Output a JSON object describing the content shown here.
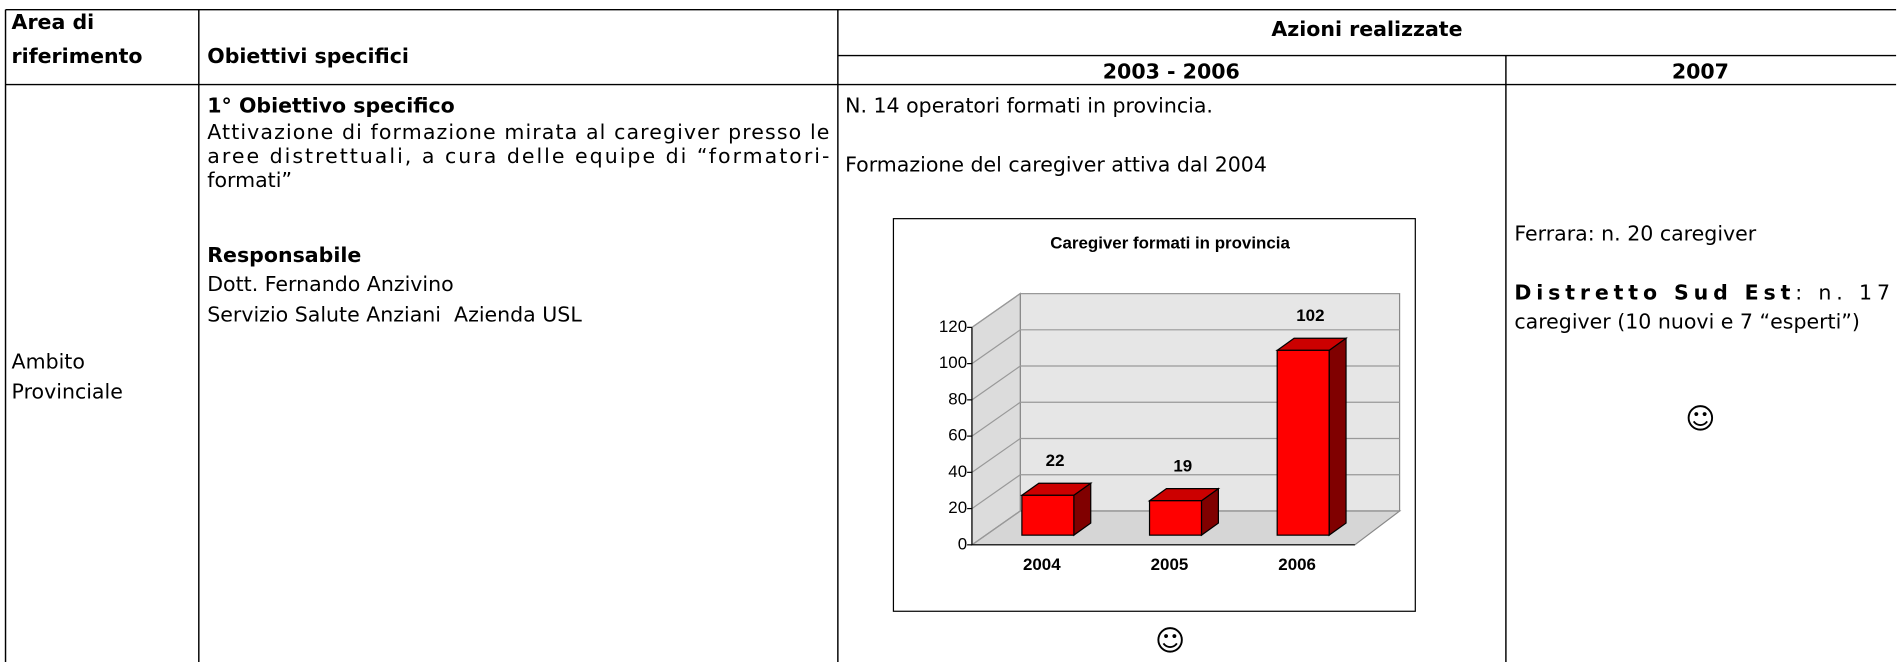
{
  "header": {
    "area": [
      "Area di",
      "riferimento"
    ],
    "objectives": "Obiettivi specifici",
    "actions": "Azioni realizzate",
    "period1": "2003 - 2006",
    "period2": "2007"
  },
  "row": {
    "area": [
      "Ambito",
      "Provinciale"
    ],
    "objective": {
      "heading": "1° Obiettivo specifico",
      "lines": [
        "Attivazione di formazione mirata al caregiver presso le",
        "aree distrettuali, a cura delle equipe di “formatori-",
        "formati”"
      ],
      "responsible_heading": "Responsabile",
      "responsible": [
        "Dott. Fernando Anzivino",
        "Servizio Salute Anziani  Azienda USL"
      ]
    },
    "period1": {
      "line1": "N. 14 operatori formati in provincia.",
      "line2": "Formazione del caregiver attiva dal 2004",
      "smiley": "☺"
    },
    "period2": {
      "line1": "Ferrara: n. 20 caregiver",
      "district": "Distretto Sud Est",
      "district_rest": ": n. 17",
      "line3": "caregiver (10 nuovi e 7 “esperti”)",
      "smiley": "☺"
    }
  },
  "chart_data": {
    "type": "bar3d",
    "title": "Caregiver formati in provincia",
    "categories": [
      "2004",
      "2005",
      "2006"
    ],
    "values": [
      22,
      19,
      102
    ],
    "color": "#ff0000",
    "ylim": [
      0,
      120
    ],
    "yticks": [
      0,
      20,
      40,
      60,
      80,
      100,
      120
    ],
    "grid": true
  }
}
